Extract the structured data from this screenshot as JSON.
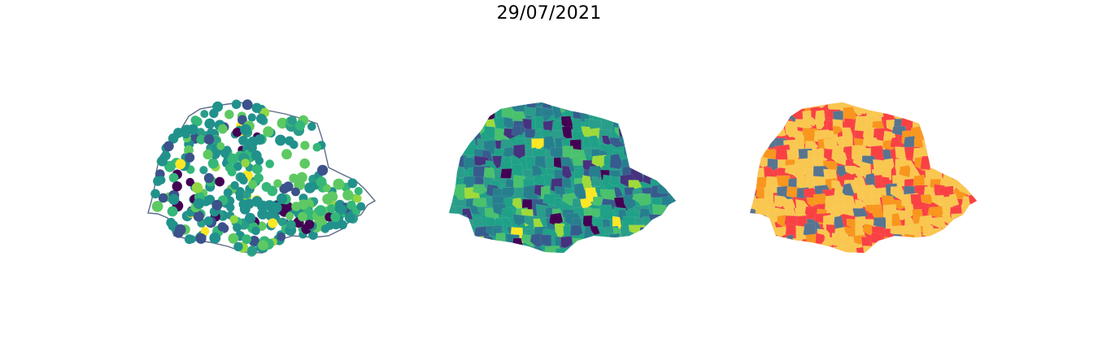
{
  "figure": {
    "title": "29/07/2021"
  },
  "panels": [
    {
      "id": "points",
      "kind": "point-map",
      "outline_color": "#5a6b86",
      "palette": [
        "#440154",
        "#3b528b",
        "#21918c",
        "#2a9d8a",
        "#35b779",
        "#5ec962",
        "#90d743",
        "#fde725"
      ]
    },
    {
      "id": "choropleth",
      "kind": "choropleth-continuous",
      "palette": [
        "#440154",
        "#46327e",
        "#365c8d",
        "#277f8e",
        "#1fa187",
        "#2a9d8a",
        "#4ac16d",
        "#9fda3a",
        "#fde725"
      ]
    },
    {
      "id": "categorical",
      "kind": "choropleth-categorical",
      "palette": [
        "#f9c74f",
        "#f8961e",
        "#f94144",
        "#577590"
      ]
    }
  ]
}
